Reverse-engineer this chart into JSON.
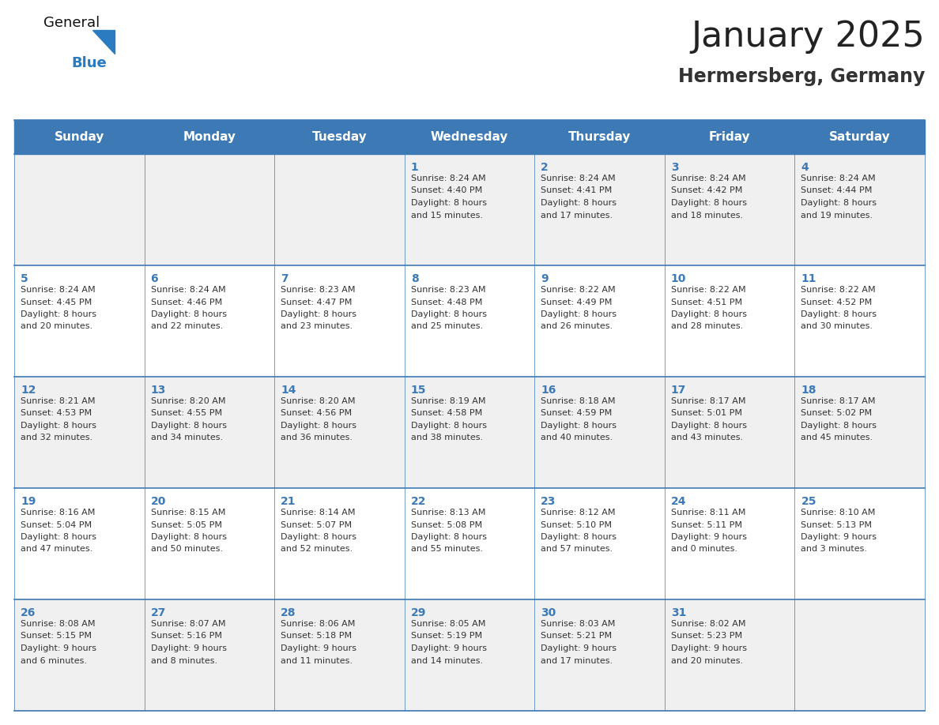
{
  "title": "January 2025",
  "subtitle": "Hermersberg, Germany",
  "header_bg_color": "#3d7ab5",
  "header_text_color": "#ffffff",
  "cell_bg_color_odd": "#f0f0f0",
  "cell_bg_color_even": "#ffffff",
  "day_number_color": "#3d7ab5",
  "cell_text_color": "#333333",
  "border_color": "#3d7ab5",
  "days_of_week": [
    "Sunday",
    "Monday",
    "Tuesday",
    "Wednesday",
    "Thursday",
    "Friday",
    "Saturday"
  ],
  "weeks": [
    [
      {
        "day": null,
        "sunrise": null,
        "sunset": null,
        "daylight1": null,
        "daylight2": null
      },
      {
        "day": null,
        "sunrise": null,
        "sunset": null,
        "daylight1": null,
        "daylight2": null
      },
      {
        "day": null,
        "sunrise": null,
        "sunset": null,
        "daylight1": null,
        "daylight2": null
      },
      {
        "day": "1",
        "sunrise": "Sunrise: 8:24 AM",
        "sunset": "Sunset: 4:40 PM",
        "daylight1": "Daylight: 8 hours",
        "daylight2": "and 15 minutes."
      },
      {
        "day": "2",
        "sunrise": "Sunrise: 8:24 AM",
        "sunset": "Sunset: 4:41 PM",
        "daylight1": "Daylight: 8 hours",
        "daylight2": "and 17 minutes."
      },
      {
        "day": "3",
        "sunrise": "Sunrise: 8:24 AM",
        "sunset": "Sunset: 4:42 PM",
        "daylight1": "Daylight: 8 hours",
        "daylight2": "and 18 minutes."
      },
      {
        "day": "4",
        "sunrise": "Sunrise: 8:24 AM",
        "sunset": "Sunset: 4:44 PM",
        "daylight1": "Daylight: 8 hours",
        "daylight2": "and 19 minutes."
      }
    ],
    [
      {
        "day": "5",
        "sunrise": "Sunrise: 8:24 AM",
        "sunset": "Sunset: 4:45 PM",
        "daylight1": "Daylight: 8 hours",
        "daylight2": "and 20 minutes."
      },
      {
        "day": "6",
        "sunrise": "Sunrise: 8:24 AM",
        "sunset": "Sunset: 4:46 PM",
        "daylight1": "Daylight: 8 hours",
        "daylight2": "and 22 minutes."
      },
      {
        "day": "7",
        "sunrise": "Sunrise: 8:23 AM",
        "sunset": "Sunset: 4:47 PM",
        "daylight1": "Daylight: 8 hours",
        "daylight2": "and 23 minutes."
      },
      {
        "day": "8",
        "sunrise": "Sunrise: 8:23 AM",
        "sunset": "Sunset: 4:48 PM",
        "daylight1": "Daylight: 8 hours",
        "daylight2": "and 25 minutes."
      },
      {
        "day": "9",
        "sunrise": "Sunrise: 8:22 AM",
        "sunset": "Sunset: 4:49 PM",
        "daylight1": "Daylight: 8 hours",
        "daylight2": "and 26 minutes."
      },
      {
        "day": "10",
        "sunrise": "Sunrise: 8:22 AM",
        "sunset": "Sunset: 4:51 PM",
        "daylight1": "Daylight: 8 hours",
        "daylight2": "and 28 minutes."
      },
      {
        "day": "11",
        "sunrise": "Sunrise: 8:22 AM",
        "sunset": "Sunset: 4:52 PM",
        "daylight1": "Daylight: 8 hours",
        "daylight2": "and 30 minutes."
      }
    ],
    [
      {
        "day": "12",
        "sunrise": "Sunrise: 8:21 AM",
        "sunset": "Sunset: 4:53 PM",
        "daylight1": "Daylight: 8 hours",
        "daylight2": "and 32 minutes."
      },
      {
        "day": "13",
        "sunrise": "Sunrise: 8:20 AM",
        "sunset": "Sunset: 4:55 PM",
        "daylight1": "Daylight: 8 hours",
        "daylight2": "and 34 minutes."
      },
      {
        "day": "14",
        "sunrise": "Sunrise: 8:20 AM",
        "sunset": "Sunset: 4:56 PM",
        "daylight1": "Daylight: 8 hours",
        "daylight2": "and 36 minutes."
      },
      {
        "day": "15",
        "sunrise": "Sunrise: 8:19 AM",
        "sunset": "Sunset: 4:58 PM",
        "daylight1": "Daylight: 8 hours",
        "daylight2": "and 38 minutes."
      },
      {
        "day": "16",
        "sunrise": "Sunrise: 8:18 AM",
        "sunset": "Sunset: 4:59 PM",
        "daylight1": "Daylight: 8 hours",
        "daylight2": "and 40 minutes."
      },
      {
        "day": "17",
        "sunrise": "Sunrise: 8:17 AM",
        "sunset": "Sunset: 5:01 PM",
        "daylight1": "Daylight: 8 hours",
        "daylight2": "and 43 minutes."
      },
      {
        "day": "18",
        "sunrise": "Sunrise: 8:17 AM",
        "sunset": "Sunset: 5:02 PM",
        "daylight1": "Daylight: 8 hours",
        "daylight2": "and 45 minutes."
      }
    ],
    [
      {
        "day": "19",
        "sunrise": "Sunrise: 8:16 AM",
        "sunset": "Sunset: 5:04 PM",
        "daylight1": "Daylight: 8 hours",
        "daylight2": "and 47 minutes."
      },
      {
        "day": "20",
        "sunrise": "Sunrise: 8:15 AM",
        "sunset": "Sunset: 5:05 PM",
        "daylight1": "Daylight: 8 hours",
        "daylight2": "and 50 minutes."
      },
      {
        "day": "21",
        "sunrise": "Sunrise: 8:14 AM",
        "sunset": "Sunset: 5:07 PM",
        "daylight1": "Daylight: 8 hours",
        "daylight2": "and 52 minutes."
      },
      {
        "day": "22",
        "sunrise": "Sunrise: 8:13 AM",
        "sunset": "Sunset: 5:08 PM",
        "daylight1": "Daylight: 8 hours",
        "daylight2": "and 55 minutes."
      },
      {
        "day": "23",
        "sunrise": "Sunrise: 8:12 AM",
        "sunset": "Sunset: 5:10 PM",
        "daylight1": "Daylight: 8 hours",
        "daylight2": "and 57 minutes."
      },
      {
        "day": "24",
        "sunrise": "Sunrise: 8:11 AM",
        "sunset": "Sunset: 5:11 PM",
        "daylight1": "Daylight: 9 hours",
        "daylight2": "and 0 minutes."
      },
      {
        "day": "25",
        "sunrise": "Sunrise: 8:10 AM",
        "sunset": "Sunset: 5:13 PM",
        "daylight1": "Daylight: 9 hours",
        "daylight2": "and 3 minutes."
      }
    ],
    [
      {
        "day": "26",
        "sunrise": "Sunrise: 8:08 AM",
        "sunset": "Sunset: 5:15 PM",
        "daylight1": "Daylight: 9 hours",
        "daylight2": "and 6 minutes."
      },
      {
        "day": "27",
        "sunrise": "Sunrise: 8:07 AM",
        "sunset": "Sunset: 5:16 PM",
        "daylight1": "Daylight: 9 hours",
        "daylight2": "and 8 minutes."
      },
      {
        "day": "28",
        "sunrise": "Sunrise: 8:06 AM",
        "sunset": "Sunset: 5:18 PM",
        "daylight1": "Daylight: 9 hours",
        "daylight2": "and 11 minutes."
      },
      {
        "day": "29",
        "sunrise": "Sunrise: 8:05 AM",
        "sunset": "Sunset: 5:19 PM",
        "daylight1": "Daylight: 9 hours",
        "daylight2": "and 14 minutes."
      },
      {
        "day": "30",
        "sunrise": "Sunrise: 8:03 AM",
        "sunset": "Sunset: 5:21 PM",
        "daylight1": "Daylight: 9 hours",
        "daylight2": "and 17 minutes."
      },
      {
        "day": "31",
        "sunrise": "Sunrise: 8:02 AM",
        "sunset": "Sunset: 5:23 PM",
        "daylight1": "Daylight: 9 hours",
        "daylight2": "and 20 minutes."
      },
      {
        "day": null,
        "sunrise": null,
        "sunset": null,
        "daylight1": null,
        "daylight2": null
      }
    ]
  ],
  "title_fontsize": 32,
  "subtitle_fontsize": 17,
  "header_fontsize": 11,
  "day_num_fontsize": 10,
  "cell_fontsize": 8
}
